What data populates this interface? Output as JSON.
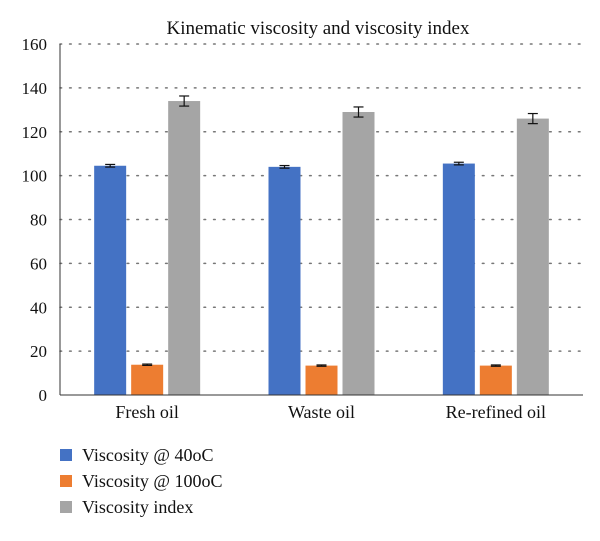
{
  "chart_data": {
    "type": "bar",
    "title": "Kinematic viscosity and viscosity index",
    "categories": [
      "Fresh oil",
      "Waste oil",
      "Re-refined oil"
    ],
    "series": [
      {
        "name": "Viscosity @ 40oC",
        "values": [
          104.5,
          104.0,
          105.5
        ],
        "errors": [
          0.6,
          0.6,
          0.6
        ],
        "color": "#4472C4"
      },
      {
        "name": "Viscosity @ 100oC",
        "values": [
          13.8,
          13.4,
          13.4
        ],
        "errors": [
          0.3,
          0.3,
          0.3
        ],
        "color": "#ED7D31"
      },
      {
        "name": "Viscosity index",
        "values": [
          134,
          129,
          126
        ],
        "errors": [
          2.3,
          2.3,
          2.3
        ],
        "color": "#A5A5A5"
      }
    ],
    "ylim": [
      0,
      160
    ],
    "yticks": [
      0,
      20,
      40,
      60,
      80,
      100,
      120,
      140,
      160
    ],
    "grid": "horizontal-dotted",
    "legend": "bottom-left"
  }
}
